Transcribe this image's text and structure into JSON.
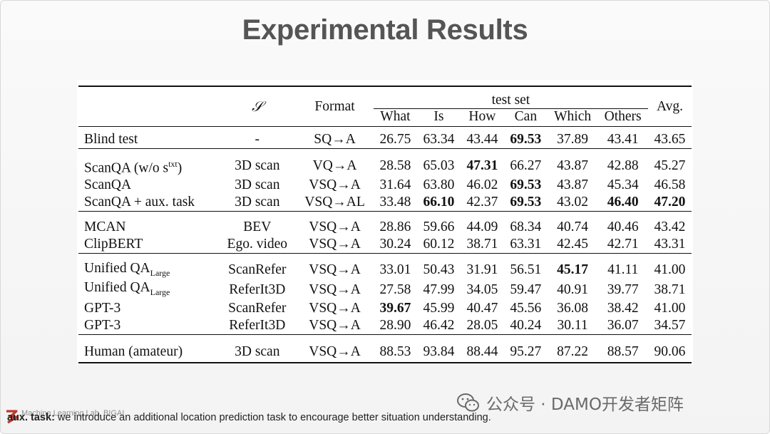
{
  "slide": {
    "title": "Experimental Results"
  },
  "table": {
    "header": {
      "col_s": "𝒮",
      "col_format": "Format",
      "group": "test set",
      "sub_cols": [
        "What",
        "Is",
        "How",
        "Can",
        "Which",
        "Others"
      ],
      "col_avg": "Avg."
    },
    "groups": [
      [
        {
          "method": "Blind test",
          "s": "-",
          "format": "SQ→A",
          "values": [
            "26.75",
            "63.34",
            "43.44",
            "69.53",
            "37.89",
            "43.41",
            "43.65"
          ],
          "bold": [
            3
          ]
        }
      ],
      [
        {
          "method": "ScanQA (w/o s",
          "method_sup": "txt",
          "method_tail": ")",
          "s": "3D scan",
          "format": "VQ→A",
          "values": [
            "28.58",
            "65.03",
            "47.31",
            "66.27",
            "43.87",
            "42.88",
            "45.27"
          ],
          "bold": [
            2
          ]
        },
        {
          "method": "ScanQA",
          "s": "3D scan",
          "format": "VSQ→A",
          "values": [
            "31.64",
            "63.80",
            "46.02",
            "69.53",
            "43.87",
            "45.34",
            "46.58"
          ],
          "bold": [
            3
          ]
        },
        {
          "method": "ScanQA + aux. task",
          "s": "3D scan",
          "format": "VSQ→AL",
          "values": [
            "33.48",
            "66.10",
            "42.37",
            "69.53",
            "43.02",
            "46.40",
            "47.20"
          ],
          "bold": [
            1,
            3,
            5,
            6
          ]
        }
      ],
      [
        {
          "method": "MCAN",
          "s": "BEV",
          "format": "VSQ→A",
          "values": [
            "28.86",
            "59.66",
            "44.09",
            "68.34",
            "40.74",
            "40.46",
            "43.42"
          ],
          "bold": []
        },
        {
          "method": "ClipBERT",
          "s": "Ego. video",
          "format": "VSQ→A",
          "values": [
            "30.24",
            "60.12",
            "38.71",
            "63.31",
            "42.45",
            "42.71",
            "43.31"
          ],
          "bold": []
        }
      ],
      [
        {
          "method": "Unified QA",
          "method_sub": "Large",
          "s": "ScanRefer",
          "format": "VSQ→A",
          "values": [
            "33.01",
            "50.43",
            "31.91",
            "56.51",
            "45.17",
            "41.11",
            "41.00"
          ],
          "bold": [
            4
          ]
        },
        {
          "method": "Unified QA",
          "method_sub": "Large",
          "s": "ReferIt3D",
          "format": "VSQ→A",
          "values": [
            "27.58",
            "47.99",
            "34.05",
            "59.47",
            "40.91",
            "39.77",
            "38.71"
          ],
          "bold": []
        },
        {
          "method": "GPT-3",
          "s": "ScanRefer",
          "format": "VSQ→A",
          "values": [
            "39.67",
            "45.99",
            "40.47",
            "45.56",
            "36.08",
            "38.42",
            "41.00"
          ],
          "bold": [
            0
          ]
        },
        {
          "method": "GPT-3",
          "s": "ReferIt3D",
          "format": "VSQ→A",
          "values": [
            "28.90",
            "46.42",
            "28.05",
            "40.24",
            "30.11",
            "36.07",
            "34.57"
          ],
          "bold": []
        }
      ],
      [
        {
          "method": "Human (amateur)",
          "s": "3D scan",
          "format": "VSQ→A",
          "values": [
            "88.53",
            "93.84",
            "88.44",
            "95.27",
            "87.22",
            "88.57",
            "90.06"
          ],
          "bold": []
        }
      ]
    ]
  },
  "footnote": {
    "label": "aux. task:",
    "text": " we introduce an additional location prediction task to encourage better situation understanding."
  },
  "lab": {
    "text": "Machine Learning Lab, BIGAI"
  },
  "watermark": {
    "text": "公众号 · DAMO开发者矩阵",
    "icon": "wechat-icon"
  },
  "colors": {
    "title": "#555555",
    "bg": "#ffffff",
    "rule": "#111111"
  }
}
